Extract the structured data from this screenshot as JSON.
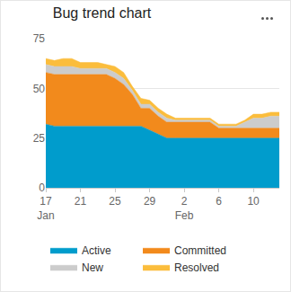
{
  "chart_data": {
    "type": "area",
    "title": "Bug trend chart",
    "categories": [
      "17\nJan",
      null,
      null,
      null,
      "21",
      null,
      null,
      null,
      "25",
      null,
      null,
      null,
      "29",
      null,
      null,
      null,
      "2\nFeb",
      null,
      null,
      null,
      "6",
      null,
      null,
      null,
      "10",
      null,
      null,
      null
    ],
    "series": [
      {
        "name": "Active",
        "color": "#009ccc",
        "values": [
          32,
          31,
          31,
          31,
          31,
          31,
          31,
          31,
          31,
          31,
          31,
          31,
          29,
          27,
          25,
          25,
          25,
          25,
          25,
          25,
          25,
          25,
          25,
          25,
          25,
          25,
          25,
          25
        ]
      },
      {
        "name": "Committed",
        "color": "#f28a1c",
        "values": [
          26,
          26,
          26,
          26,
          26,
          26,
          26,
          26,
          24,
          21,
          16,
          9,
          11,
          9,
          8,
          8,
          8,
          8,
          8,
          8,
          5,
          5,
          5,
          5,
          5,
          5,
          5,
          5
        ]
      },
      {
        "name": "New",
        "color": "#cccccc",
        "values": [
          4,
          4,
          4,
          4,
          3,
          3,
          3,
          3,
          3,
          3,
          2,
          2,
          2,
          2,
          2,
          1,
          1,
          1,
          1,
          1,
          1,
          1,
          1,
          3,
          5,
          5,
          6,
          6
        ]
      },
      {
        "name": "Resolved",
        "color": "#fbbd3c",
        "values": [
          3,
          3,
          4,
          4,
          3,
          3,
          3,
          2,
          3,
          3,
          2,
          3,
          2,
          2,
          2,
          1,
          1,
          1,
          1,
          1,
          1,
          1,
          1,
          1,
          2,
          2,
          2,
          2
        ]
      }
    ],
    "ylim": [
      0,
      75
    ],
    "yticks": [
      0,
      25,
      50,
      75
    ],
    "grid": true,
    "stacked": true,
    "legend": "bottom"
  }
}
